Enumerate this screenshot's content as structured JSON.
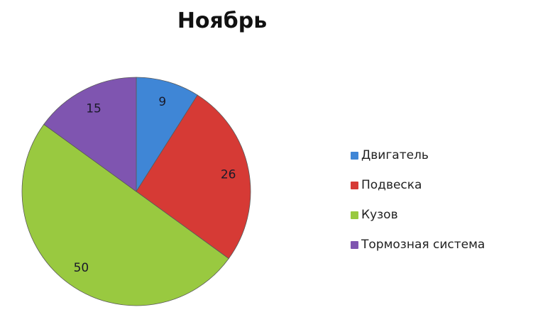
{
  "chart_data": {
    "type": "pie",
    "title": "Ноябрь",
    "categories": [
      "Двигатель",
      "Подвеска",
      "Кузов",
      "Тормозная система"
    ],
    "values": [
      9,
      26,
      50,
      15
    ],
    "colors": [
      "#3f86d6",
      "#d63a35",
      "#99c940",
      "#7f55b0"
    ],
    "start_angle_deg": 0,
    "direction": "clockwise",
    "data_labels": [
      "9",
      "26",
      "50",
      "15"
    ],
    "legend_position": "right"
  }
}
